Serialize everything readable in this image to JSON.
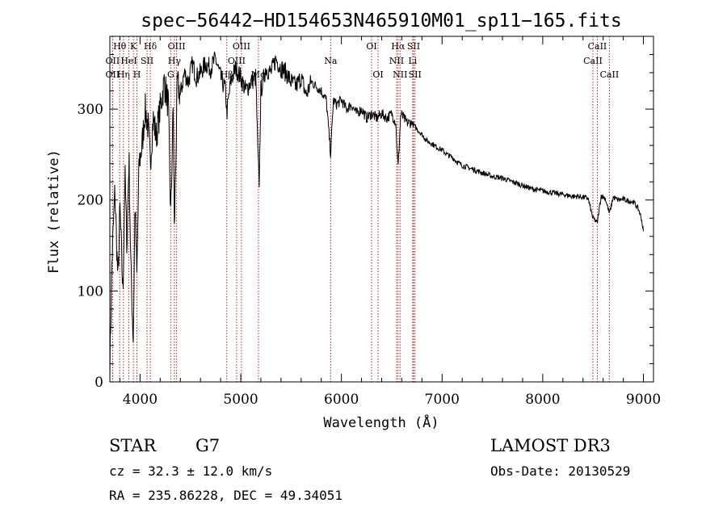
{
  "chart_data": {
    "type": "line",
    "title": "spec−56442−HD154653N465910M01_sp11−165.fits",
    "xlabel": "Wavelength (Å)",
    "ylabel": "Flux (relative)",
    "xlim": [
      3700,
      9100
    ],
    "ylim": [
      0,
      380
    ],
    "xticks": [
      4000,
      5000,
      6000,
      7000,
      8000,
      9000
    ],
    "yticks": [
      0,
      100,
      200,
      300
    ],
    "grid": false,
    "line_color": "#000000",
    "marker_color": "#b22222",
    "series": [
      {
        "name": "flux",
        "x": [
          3700,
          3720,
          3750,
          3780,
          3800,
          3830,
          3850,
          3870,
          3890,
          3910,
          3933,
          3950,
          3968,
          3990,
          4020,
          4050,
          4080,
          4101,
          4130,
          4160,
          4200,
          4240,
          4280,
          4305,
          4330,
          4340,
          4370,
          4400,
          4440,
          4480,
          4520,
          4560,
          4600,
          4650,
          4700,
          4750,
          4800,
          4850,
          4861,
          4900,
          4950,
          5000,
          5050,
          5100,
          5150,
          5170,
          5183,
          5200,
          5250,
          5300,
          5350,
          5400,
          5450,
          5500,
          5550,
          5600,
          5650,
          5700,
          5750,
          5800,
          5850,
          5893,
          5920,
          5950,
          6000,
          6050,
          6100,
          6150,
          6200,
          6250,
          6300,
          6350,
          6400,
          6450,
          6500,
          6540,
          6563,
          6590,
          6620,
          6650,
          6700,
          6750,
          6800,
          6850,
          6900,
          6950,
          7000,
          7050,
          7100,
          7150,
          7200,
          7250,
          7300,
          7350,
          7400,
          7450,
          7500,
          7550,
          7600,
          7650,
          7700,
          7750,
          7800,
          7850,
          7900,
          7950,
          8000,
          8050,
          8100,
          8150,
          8200,
          8250,
          8300,
          8350,
          8400,
          8450,
          8498,
          8542,
          8580,
          8620,
          8662,
          8700,
          8750,
          8800,
          8850,
          8900,
          8950,
          8980,
          9000
        ],
        "y": [
          15,
          130,
          210,
          110,
          190,
          95,
          230,
          150,
          250,
          120,
          45,
          200,
          115,
          240,
          260,
          300,
          280,
          240,
          290,
          270,
          300,
          330,
          305,
          180,
          310,
          165,
          330,
          315,
          340,
          330,
          350,
          335,
          340,
          350,
          345,
          355,
          335,
          320,
          295,
          330,
          345,
          335,
          320,
          330,
          335,
          250,
          215,
          320,
          345,
          340,
          355,
          345,
          340,
          330,
          325,
          335,
          315,
          330,
          325,
          320,
          310,
          250,
          310,
          305,
          310,
          300,
          305,
          295,
          300,
          290,
          295,
          290,
          295,
          290,
          295,
          285,
          235,
          295,
          290,
          285,
          285,
          278,
          272,
          265,
          262,
          258,
          255,
          250,
          247,
          242,
          238,
          236,
          234,
          232,
          230,
          228,
          226,
          225,
          224,
          222,
          220,
          218,
          216,
          214,
          212,
          211,
          210,
          209,
          208,
          207,
          206,
          205,
          204,
          204,
          203,
          202,
          180,
          175,
          205,
          202,
          185,
          203,
          200,
          201,
          199,
          198,
          190,
          180,
          165
        ]
      }
    ],
    "line_markers": [
      {
        "label": "Hθ",
        "x": 3798,
        "row": 0
      },
      {
        "label": "OII",
        "x": 3727,
        "row": 1
      },
      {
        "label": "OII",
        "x": 3727,
        "row": 2
      },
      {
        "label": "Hη",
        "x": 3835,
        "row": 2
      },
      {
        "label": "HeI",
        "x": 3889,
        "row": 1
      },
      {
        "label": "K",
        "x": 3934,
        "row": 0
      },
      {
        "label": "H",
        "x": 3969,
        "row": 2
      },
      {
        "label": "SII",
        "x": 4070,
        "row": 1
      },
      {
        "label": "Hδ",
        "x": 4102,
        "row": 0
      },
      {
        "label": "G",
        "x": 4305,
        "row": 2
      },
      {
        "label": "OIII",
        "x": 4363,
        "row": 0
      },
      {
        "label": "Hγ",
        "x": 4341,
        "row": 1
      },
      {
        "label": "OIII",
        "x": 5007,
        "row": 0
      },
      {
        "label": "OIII",
        "x": 4959,
        "row": 1
      },
      {
        "label": "Hβ",
        "x": 4861,
        "row": 2
      },
      {
        "label": "Mg",
        "x": 5176,
        "row": 2
      },
      {
        "label": "Na",
        "x": 5893,
        "row": 1
      },
      {
        "label": "OI",
        "x": 6300,
        "row": 0
      },
      {
        "label": "OI",
        "x": 6364,
        "row": 2
      },
      {
        "label": "Hα",
        "x": 6563,
        "row": 0
      },
      {
        "label": "SII",
        "x": 6717,
        "row": 0
      },
      {
        "label": "NII",
        "x": 6548,
        "row": 1
      },
      {
        "label": "Li",
        "x": 6708,
        "row": 1
      },
      {
        "label": "NII",
        "x": 6583,
        "row": 2
      },
      {
        "label": "SII",
        "x": 6731,
        "row": 2
      },
      {
        "label": "CaII",
        "x": 8542,
        "row": 0
      },
      {
        "label": "CaII",
        "x": 8498,
        "row": 1
      },
      {
        "label": "CaII",
        "x": 8662,
        "row": 2
      }
    ]
  },
  "info": {
    "star_type": "STAR",
    "subclass": "G7",
    "survey": "LAMOST DR3",
    "cz": "cz = 32.3 ± 12.0 km/s",
    "obs_date": "Obs-Date: 20130529",
    "radec": "RA = 235.86228, DEC =  49.34051"
  }
}
